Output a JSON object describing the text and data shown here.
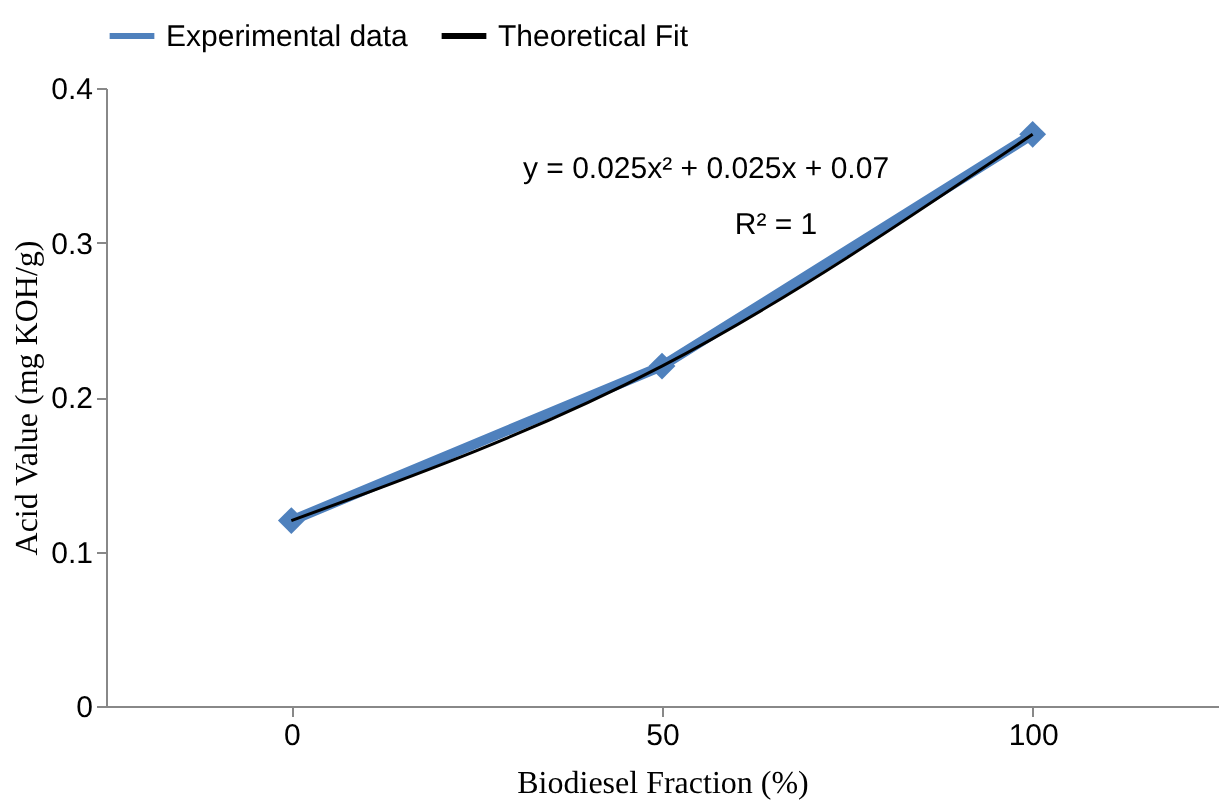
{
  "chart_data": {
    "type": "line",
    "xlabel": "Biodiesel Fraction (%)",
    "ylabel": "Acid Value (mg KOH/g)",
    "categories": [
      "0",
      "50",
      "100"
    ],
    "series": [
      {
        "name": "Experimental data",
        "color": "#4f81bd",
        "values": [
          0.12,
          0.22,
          0.37
        ],
        "marker": "diamond",
        "line_style": "solid"
      },
      {
        "name": "Theoretical Fit",
        "color": "#000000",
        "values": [
          0.12,
          0.22,
          0.37
        ],
        "marker": "none",
        "line_style": "solid"
      }
    ],
    "ylim": [
      0,
      0.4
    ],
    "yticks": [
      0,
      0.1,
      0.2,
      0.3,
      0.4
    ],
    "grid": false,
    "legend": "top",
    "annotations": [
      "y = 0.025x² + 0.025x + 0.07",
      "R² = 1"
    ]
  }
}
